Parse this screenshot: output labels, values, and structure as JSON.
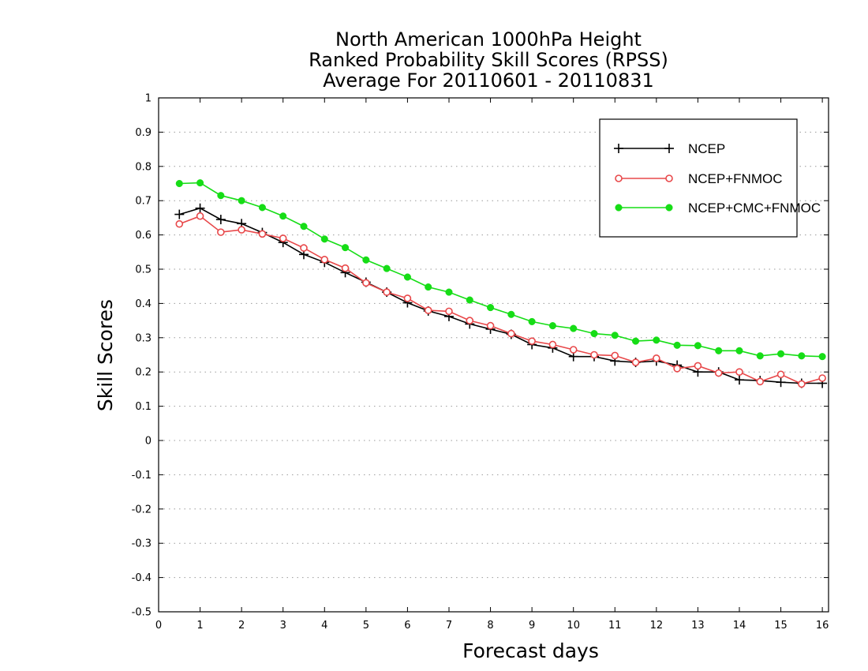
{
  "chart_data": {
    "type": "line",
    "title_lines": [
      "North American 1000hPa Height",
      "Ranked Probability Skill Scores (RPSS)",
      "Average For 20110601 - 20110831"
    ],
    "xlabel": "Forecast days",
    "ylabel": "Skill Scores",
    "xlim": [
      0,
      16.15
    ],
    "ylim": [
      -0.5,
      1
    ],
    "x_ticks": [
      "0",
      "1",
      "2",
      "3",
      "4",
      "5",
      "6",
      "7",
      "8",
      "9",
      "10",
      "11",
      "12",
      "13",
      "14",
      "15",
      "16"
    ],
    "y_ticks": [
      "1",
      "0.9",
      "0.8",
      "0.7",
      "0.6",
      "0.5",
      "0.4",
      "0.3",
      "0.2",
      "0.1",
      "0",
      "-0.1",
      "-0.2",
      "-0.3",
      "-0.4",
      "-0.5"
    ],
    "grid": "horizontal dotted",
    "legend_position": "top-right",
    "x": [
      0.5,
      1,
      1.5,
      2,
      2.5,
      3,
      3.5,
      4,
      4.5,
      5,
      5.5,
      6,
      6.5,
      7,
      7.5,
      8,
      8.5,
      9,
      9.5,
      10,
      10.5,
      11,
      11.5,
      12,
      12.5,
      13,
      13.5,
      14,
      14.5,
      15,
      15.5,
      16
    ],
    "series": [
      {
        "name": "NCEP",
        "color": "#000000",
        "marker": "plus",
        "values": [
          0.66,
          0.678,
          0.645,
          0.633,
          0.607,
          0.578,
          0.543,
          0.52,
          0.49,
          0.462,
          0.433,
          0.402,
          0.378,
          0.362,
          0.34,
          0.325,
          0.31,
          0.28,
          0.27,
          0.245,
          0.245,
          0.232,
          0.228,
          0.232,
          0.22,
          0.2,
          0.2,
          0.177,
          0.175,
          0.17,
          0.167,
          0.167
        ]
      },
      {
        "name": "NCEP+FNMOC",
        "color": "#e8484a",
        "marker": "open-circle",
        "values": [
          0.632,
          0.655,
          0.608,
          0.615,
          0.603,
          0.59,
          0.562,
          0.528,
          0.503,
          0.46,
          0.433,
          0.415,
          0.38,
          0.377,
          0.35,
          0.335,
          0.312,
          0.29,
          0.28,
          0.265,
          0.25,
          0.248,
          0.228,
          0.24,
          0.21,
          0.218,
          0.197,
          0.2,
          0.172,
          0.193,
          0.165,
          0.182
        ]
      },
      {
        "name": "NCEP+CMC+FNMOC",
        "color": "#16dd16",
        "marker": "filled-circle",
        "values": [
          0.75,
          0.752,
          0.715,
          0.7,
          0.68,
          0.655,
          0.625,
          0.588,
          0.563,
          0.527,
          0.502,
          0.477,
          0.448,
          0.433,
          0.41,
          0.388,
          0.368,
          0.347,
          0.335,
          0.327,
          0.312,
          0.307,
          0.29,
          0.293,
          0.278,
          0.277,
          0.262,
          0.262,
          0.247,
          0.253,
          0.247,
          0.245
        ]
      }
    ]
  }
}
